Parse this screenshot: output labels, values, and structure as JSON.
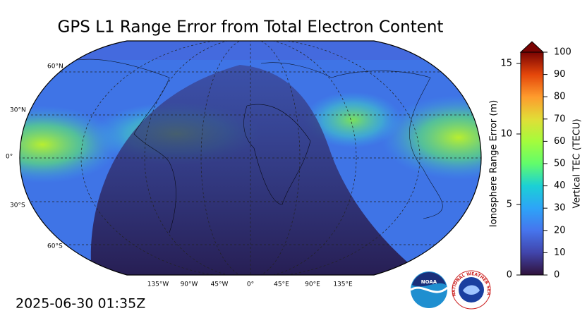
{
  "title": "GPS L1 Range Error from Total Electron Content",
  "map": {
    "lat_labels": [
      "60°N",
      "30°N",
      "0°",
      "30°S",
      "60°S"
    ],
    "lon_labels": [
      "135°W",
      "90°W",
      "45°W",
      "0°",
      "45°E",
      "90°E",
      "135°E"
    ]
  },
  "colorbar": {
    "left_label": "Ionosphere Range Error (m)",
    "right_label": "Vertical TEC (TECU)",
    "left_ticks": [
      0,
      5,
      10,
      15
    ],
    "right_ticks": [
      0,
      10,
      20,
      30,
      40,
      50,
      60,
      70,
      80,
      90,
      100
    ]
  },
  "timestamp": "2025-06-30 01:35Z",
  "logos": {
    "noaa": "NOAA",
    "nws": "NATIONAL WEATHER SERVICE"
  }
}
